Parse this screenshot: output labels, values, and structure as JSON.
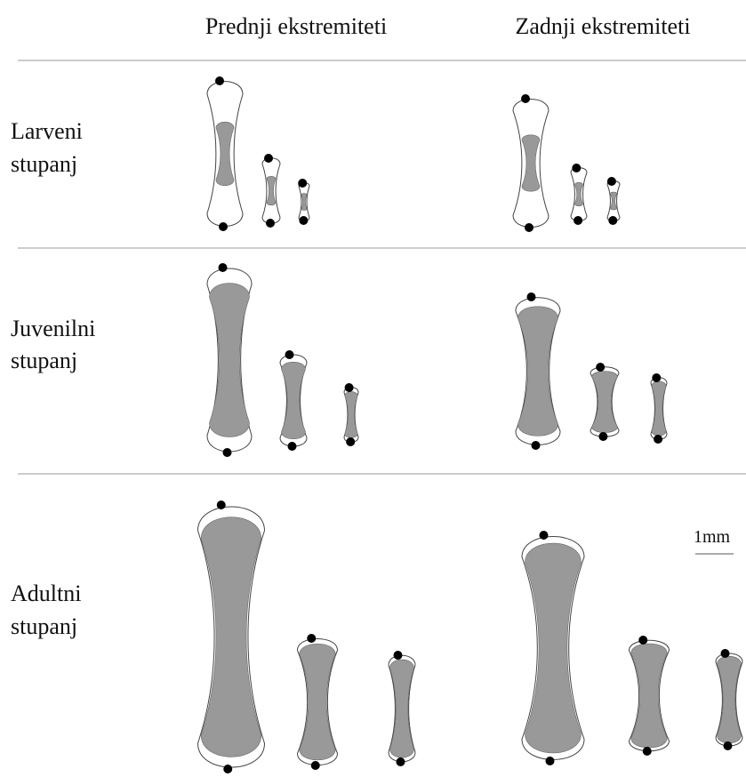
{
  "columns": [
    "Prednji ekstremiteti",
    "Zadnji ekstremiteti"
  ],
  "rows": [
    [
      "Larveni",
      "stupanj"
    ],
    [
      "Juvenilni",
      "stupanj"
    ],
    [
      "Adultni",
      "stupanj"
    ]
  ],
  "scale_label": "1mm"
}
